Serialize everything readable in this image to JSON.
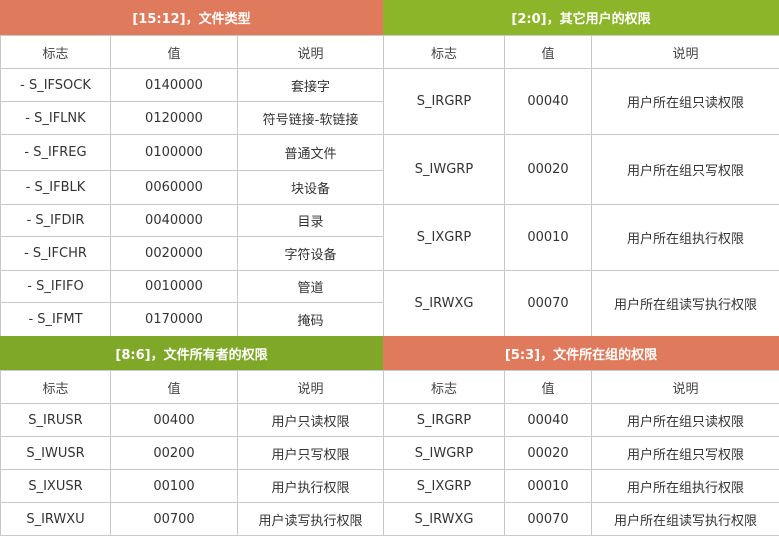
{
  "colors": {
    "orange_header": "#e07a5c",
    "green_header": "#8db52a",
    "border": "#c8c8c8",
    "text": "#333333"
  },
  "panel_file_type": {
    "title": "[15:12]，文件类型",
    "headers": [
      "标志",
      "值",
      "说明"
    ],
    "rows": [
      [
        "- S_IFSOCK",
        "0140000",
        "套接字"
      ],
      [
        "- S_IFLNK",
        "0120000",
        "符号链接-软链接"
      ],
      [
        "- S_IFREG",
        "0100000",
        "普通文件"
      ],
      [
        "- S_IFBLK",
        "0060000",
        "块设备"
      ],
      [
        "- S_IFDIR",
        "0040000",
        "目录"
      ],
      [
        "- S_IFCHR",
        "0020000",
        "字符设备"
      ],
      [
        "- S_IFIFO",
        "0010000",
        "管道"
      ],
      [
        "- S_IFMT",
        "0170000",
        "掩码"
      ]
    ]
  },
  "panel_other_perm": {
    "title": "[2:0]，其它用户的权限",
    "headers": [
      "标志",
      "值",
      "说明"
    ],
    "rows": [
      [
        "S_IRGRP",
        "00040",
        "用户所在组只读权限"
      ],
      [
        "S_IWGRP",
        "00020",
        "用户所在组只写权限"
      ],
      [
        "S_IXGRP",
        "00010",
        "用户所在组执行权限"
      ],
      [
        "S_IRWXG",
        "00070",
        "用户所在组读写执行权限"
      ]
    ]
  },
  "panel_owner_perm": {
    "title": "[8:6]，文件所有者的权限",
    "headers": [
      "标志",
      "值",
      "说明"
    ],
    "rows": [
      [
        "S_IRUSR",
        "00400",
        "用户只读权限"
      ],
      [
        "S_IWUSR",
        "00200",
        "用户只写权限"
      ],
      [
        "S_IXUSR",
        "00100",
        "用户执行权限"
      ],
      [
        "S_IRWXU",
        "00700",
        "用户读写执行权限"
      ]
    ]
  },
  "panel_group_perm": {
    "title": "[5:3]，文件所在组的权限",
    "headers": [
      "标志",
      "值",
      "说明"
    ],
    "rows": [
      [
        "S_IRGRP",
        "00040",
        "用户所在组只读权限"
      ],
      [
        "S_IWGRP",
        "00020",
        "用户所在组只写权限"
      ],
      [
        "S_IXGRP",
        "00010",
        "用户所在组执行权限"
      ],
      [
        "S_IRWXG",
        "00070",
        "用户所在组读写执行权限"
      ]
    ]
  }
}
